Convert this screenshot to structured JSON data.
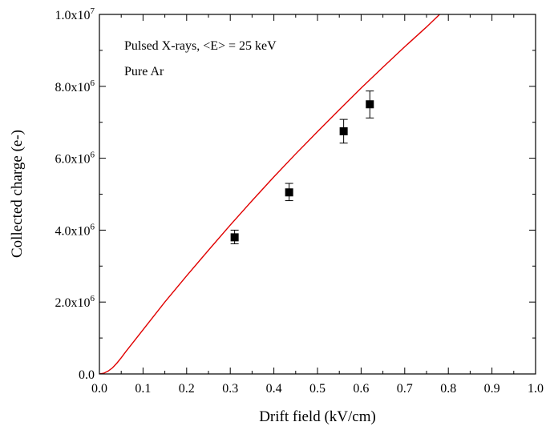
{
  "chart_data": {
    "type": "scatter",
    "xlabel": "Drift field (kV/cm)",
    "ylabel": "Collected charge (e-)",
    "xlim": [
      0.0,
      1.0
    ],
    "ylim": [
      0,
      10000000
    ],
    "grid": false,
    "x_ticks": [
      {
        "value": 0.0,
        "label": "0.0"
      },
      {
        "value": 0.1,
        "label": "0.1"
      },
      {
        "value": 0.2,
        "label": "0.2"
      },
      {
        "value": 0.3,
        "label": "0.3"
      },
      {
        "value": 0.4,
        "label": "0.4"
      },
      {
        "value": 0.5,
        "label": "0.5"
      },
      {
        "value": 0.6,
        "label": "0.6"
      },
      {
        "value": 0.7,
        "label": "0.7"
      },
      {
        "value": 0.8,
        "label": "0.8"
      },
      {
        "value": 0.9,
        "label": "0.9"
      },
      {
        "value": 1.0,
        "label": "1.0"
      }
    ],
    "y_ticks": [
      {
        "value": 0,
        "mantissa": "0.0",
        "exp": ""
      },
      {
        "value": 2000000,
        "mantissa": "2.0x10",
        "exp": "6"
      },
      {
        "value": 4000000,
        "mantissa": "4.0x10",
        "exp": "6"
      },
      {
        "value": 6000000,
        "mantissa": "6.0x10",
        "exp": "6"
      },
      {
        "value": 8000000,
        "mantissa": "8.0x10",
        "exp": "6"
      },
      {
        "value": 10000000,
        "mantissa": "1.0x10",
        "exp": "7"
      }
    ],
    "annotations": [
      "Pulsed X-rays, <E> = 25 keV",
      "Pure Ar"
    ],
    "series": [
      {
        "type": "scatter",
        "marker": "square",
        "color": "#000000",
        "points": [
          {
            "x": 0.31,
            "y": 3800000,
            "err_lo": 3620000,
            "err_hi": 4000000
          },
          {
            "x": 0.435,
            "y": 5050000,
            "err_lo": 4820000,
            "err_hi": 5300000
          },
          {
            "x": 0.56,
            "y": 6750000,
            "err_lo": 6420000,
            "err_hi": 7080000
          },
          {
            "x": 0.62,
            "y": 7500000,
            "err_lo": 7120000,
            "err_hi": 7870000
          }
        ]
      },
      {
        "type": "line",
        "color": "#e00000",
        "points": [
          [
            0.0,
            0
          ],
          [
            0.01,
            20000
          ],
          [
            0.02,
            80000
          ],
          [
            0.03,
            170000
          ],
          [
            0.04,
            300000
          ],
          [
            0.05,
            450000
          ],
          [
            0.06,
            610000
          ],
          [
            0.08,
            920000
          ],
          [
            0.1,
            1230000
          ],
          [
            0.15,
            2000000
          ],
          [
            0.2,
            2730000
          ],
          [
            0.25,
            3440000
          ],
          [
            0.3,
            4140000
          ],
          [
            0.35,
            4820000
          ],
          [
            0.4,
            5480000
          ],
          [
            0.45,
            6120000
          ],
          [
            0.5,
            6740000
          ],
          [
            0.55,
            7350000
          ],
          [
            0.6,
            7950000
          ],
          [
            0.65,
            8530000
          ],
          [
            0.7,
            9100000
          ],
          [
            0.75,
            9650000
          ],
          [
            0.78,
            10000000
          ]
        ]
      }
    ]
  }
}
